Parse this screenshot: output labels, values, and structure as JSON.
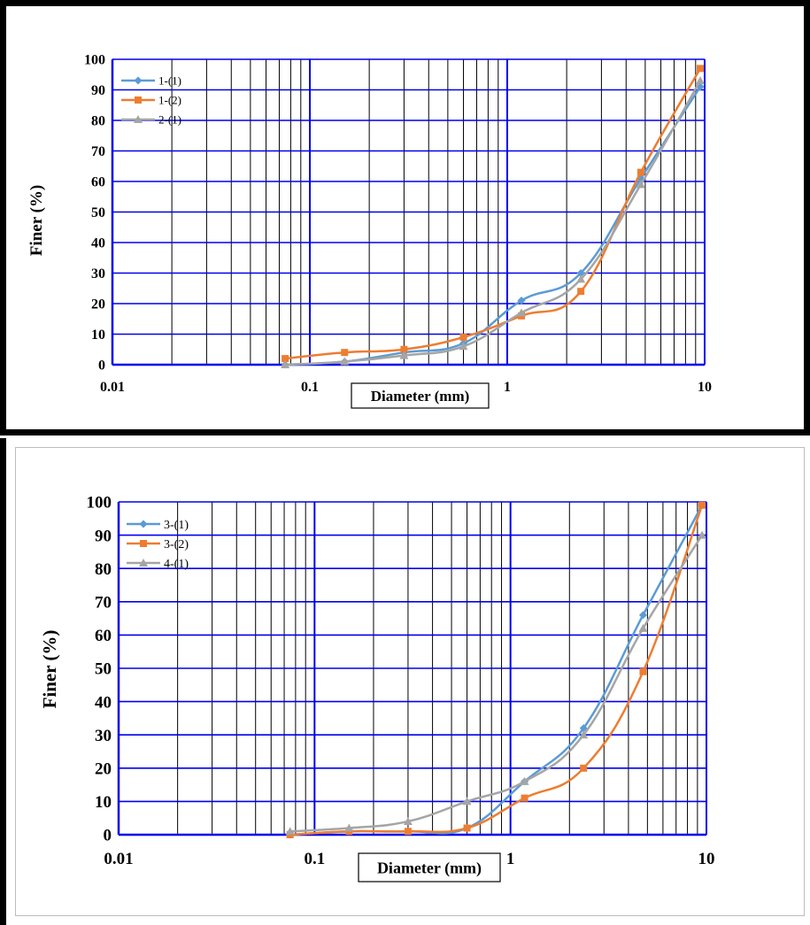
{
  "chart_data": [
    {
      "type": "line",
      "xscale": "log",
      "xlim": [
        0.01,
        10
      ],
      "ylim": [
        0,
        100
      ],
      "xticks": [
        "0.01",
        "0.1",
        "1",
        "10"
      ],
      "yticks": [
        "0",
        "10",
        "20",
        "30",
        "40",
        "50",
        "60",
        "70",
        "80",
        "90",
        "100"
      ],
      "xlabel": "Diameter (mm)",
      "ylabel": "Finer (%)",
      "grid": true,
      "legend": "top-left",
      "series": [
        {
          "name": "1-(1)",
          "color": "#5b9bd5",
          "marker": "diamond",
          "x": [
            0.075,
            0.15,
            0.3,
            0.6,
            1.18,
            2.36,
            4.75,
            9.5
          ],
          "y": [
            0,
            1,
            4,
            7,
            21,
            30,
            61,
            91
          ]
        },
        {
          "name": "1-(2)",
          "color": "#ed7d31",
          "marker": "square",
          "x": [
            0.075,
            0.15,
            0.3,
            0.6,
            1.18,
            2.36,
            4.75,
            9.5
          ],
          "y": [
            2,
            4,
            5,
            9,
            16,
            24,
            63,
            97
          ]
        },
        {
          "name": "2-(1)",
          "color": "#a5a5a5",
          "marker": "triangle",
          "x": [
            0.075,
            0.15,
            0.3,
            0.6,
            1.18,
            2.36,
            4.75,
            9.5
          ],
          "y": [
            0,
            1,
            3,
            6,
            17,
            28,
            59,
            93
          ]
        }
      ]
    },
    {
      "type": "line",
      "xscale": "log",
      "xlim": [
        0.01,
        10
      ],
      "ylim": [
        0,
        100
      ],
      "xticks": [
        "0.01",
        "0.1",
        "1",
        "10"
      ],
      "yticks": [
        "0",
        "10",
        "20",
        "30",
        "40",
        "50",
        "60",
        "70",
        "80",
        "90",
        "100"
      ],
      "xlabel": "Diameter (mm)",
      "ylabel": "Finer (%)",
      "grid": true,
      "legend": "top-left",
      "series": [
        {
          "name": "3-(1)",
          "color": "#5b9bd5",
          "marker": "diamond",
          "x": [
            0.075,
            0.15,
            0.3,
            0.6,
            1.18,
            2.36,
            4.75,
            9.5
          ],
          "y": [
            0,
            1,
            1,
            2,
            16,
            32,
            66,
            99
          ]
        },
        {
          "name": "3-(2)",
          "color": "#ed7d31",
          "marker": "square",
          "x": [
            0.075,
            0.15,
            0.3,
            0.6,
            1.18,
            2.36,
            4.75,
            9.5
          ],
          "y": [
            0,
            1,
            1,
            2,
            11,
            20,
            49,
            99
          ]
        },
        {
          "name": "4-(1)",
          "color": "#a5a5a5",
          "marker": "triangle",
          "x": [
            0.075,
            0.15,
            0.3,
            0.6,
            1.18,
            2.36,
            4.75,
            9.5
          ],
          "y": [
            1,
            2,
            4,
            10,
            16,
            30,
            62,
            90
          ]
        }
      ]
    }
  ]
}
